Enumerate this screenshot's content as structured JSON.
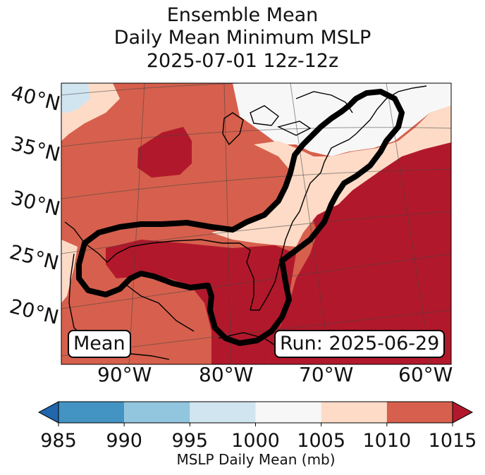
{
  "title_lines": [
    "Ensemble Mean",
    "Daily Mean Minimum MSLP",
    "2025-07-01 12z-12z"
  ],
  "map": {
    "lat_labels": [
      "40°N",
      "35°N",
      "30°N",
      "25°N",
      "20°N"
    ],
    "lon_labels": [
      "90°W",
      "80°W",
      "70°W",
      "60°W"
    ],
    "left_badge": "Mean",
    "right_badge": "Run: 2025-06-29"
  },
  "chart_data": {
    "type": "heatmap",
    "title": "Ensemble Mean Daily Mean Minimum MSLP 2025-07-01 12z-12z",
    "variable": "MSLP Daily Mean (mb)",
    "extent_lon": [
      -96,
      -57
    ],
    "extent_lat": [
      15,
      41
    ],
    "colorbar": {
      "label": "MSLP Daily Mean (mb)",
      "ticks": [
        "985",
        "990",
        "995",
        "1000",
        "1005",
        "1010",
        "1015"
      ],
      "bins": [
        {
          "range": [
            985,
            990
          ],
          "color": "#4393c3"
        },
        {
          "range": [
            990,
            995
          ],
          "color": "#92c5de"
        },
        {
          "range": [
            995,
            1000
          ],
          "color": "#d1e5f0"
        },
        {
          "range": [
            1000,
            1005
          ],
          "color": "#f7f7f7"
        },
        {
          "range": [
            1005,
            1010
          ],
          "color": "#fddbc7"
        },
        {
          "range": [
            1010,
            1015
          ],
          "color": "#d6604d"
        },
        {
          "range": [
            1015,
            1020
          ],
          "color": "#b2182b"
        }
      ],
      "extend_low_color": "#2166ac",
      "extend_high_color": "#b2182b"
    },
    "regions": [
      {
        "name": "background-1010-1015",
        "value_range": [
          1010,
          1015
        ]
      },
      {
        "name": "atlantic-high",
        "value_range": [
          1015,
          1020
        ]
      },
      {
        "name": "gulf-high",
        "value_range": [
          1015,
          1020
        ]
      },
      {
        "name": "central-us-high",
        "value_range": [
          1015,
          1020
        ]
      },
      {
        "name": "northeast-1000-1005",
        "value_range": [
          1000,
          1005
        ]
      },
      {
        "name": "coastal-1005-1010",
        "value_range": [
          1005,
          1010
        ]
      }
    ],
    "highlight_contour": "thick black outline around Gulf of Mexico and US East Coast"
  }
}
